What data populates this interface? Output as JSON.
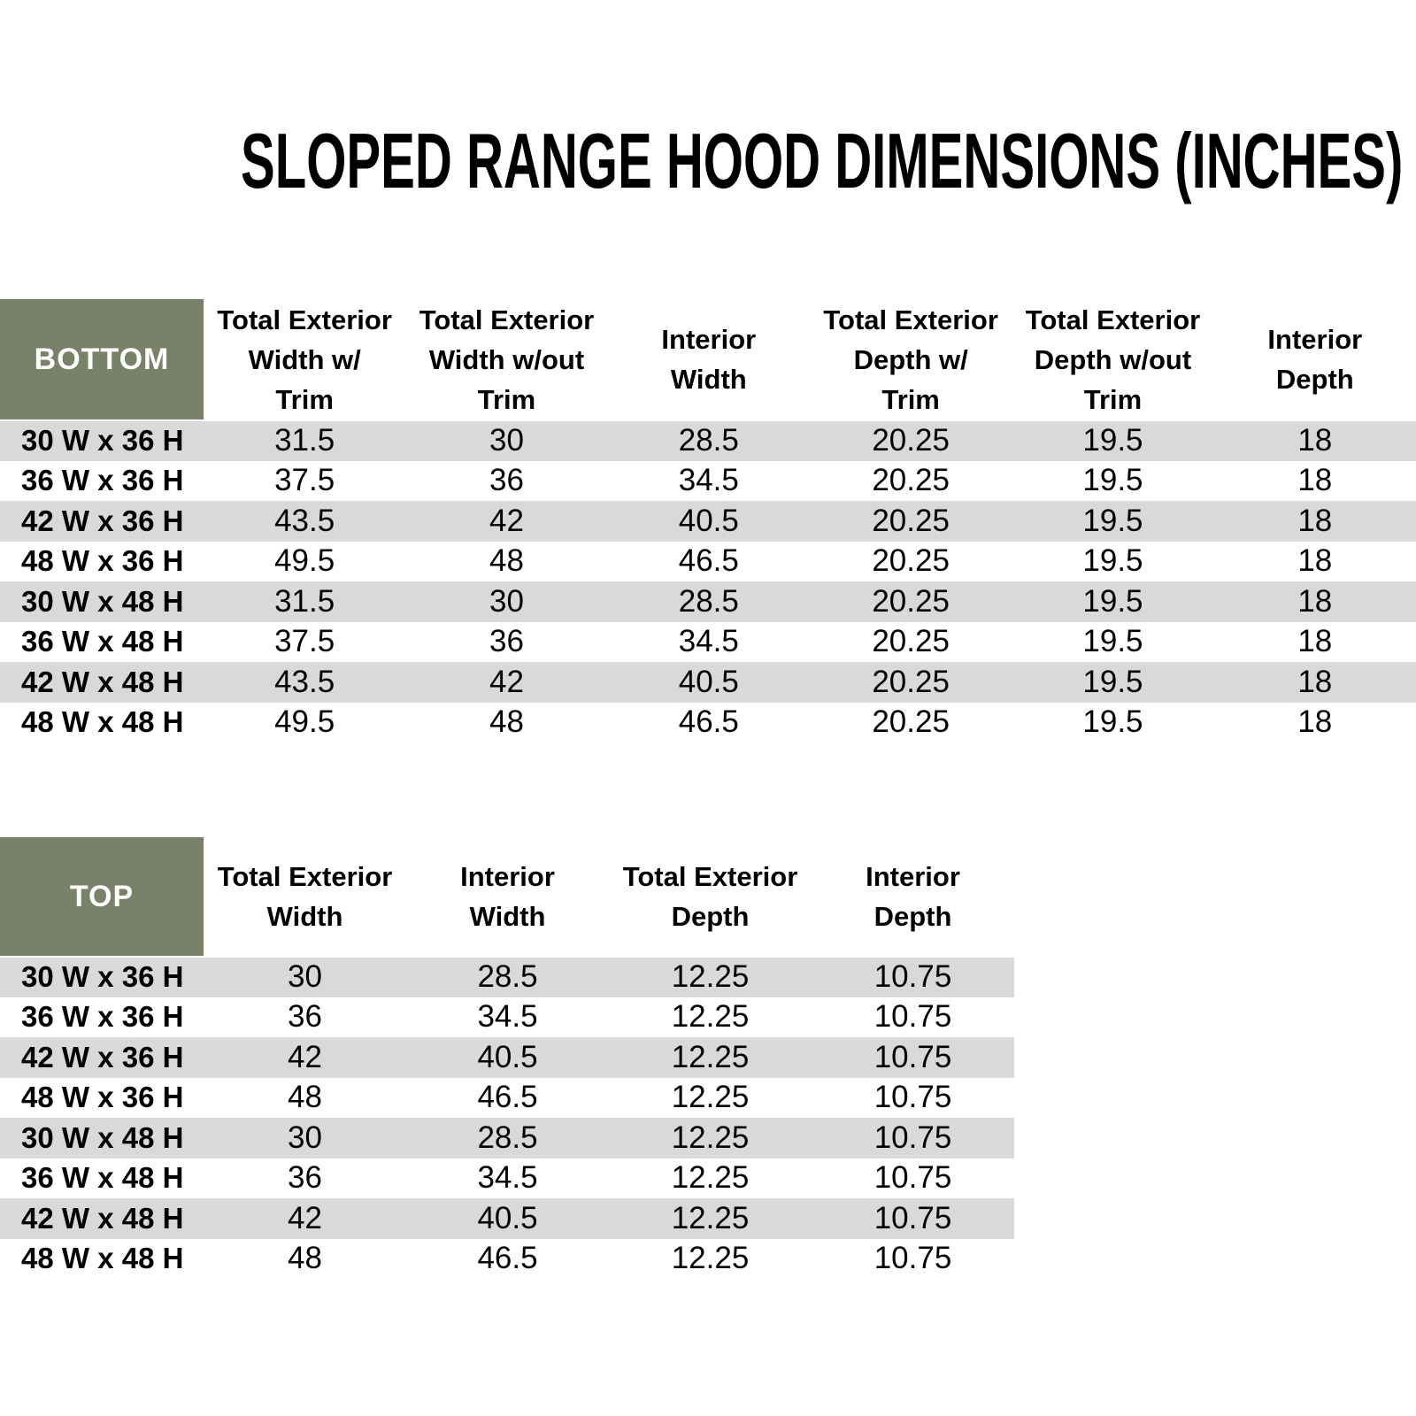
{
  "title": "SLOPED RANGE HOOD DIMENSIONS (INCHES)",
  "colors": {
    "header_fill": "#798269",
    "header_text": "#ffffff",
    "stripe_fill": "#d9d9d9",
    "body_text": "#000000",
    "background": "#ffffff"
  },
  "bottom_table": {
    "corner_label": "BOTTOM",
    "columns": [
      "Total Exterior\nWidth w/\nTrim",
      "Total Exterior\nWidth w/out\nTrim",
      "Interior\nWidth",
      "Total Exterior\nDepth w/\nTrim",
      "Total Exterior\nDepth w/out\nTrim",
      "Interior\nDepth"
    ],
    "rows": [
      {
        "label": "30 W x 36 H",
        "values": [
          "31.5",
          "30",
          "28.5",
          "20.25",
          "19.5",
          "18"
        ]
      },
      {
        "label": "36 W x 36 H",
        "values": [
          "37.5",
          "36",
          "34.5",
          "20.25",
          "19.5",
          "18"
        ]
      },
      {
        "label": "42 W x 36 H",
        "values": [
          "43.5",
          "42",
          "40.5",
          "20.25",
          "19.5",
          "18"
        ]
      },
      {
        "label": "48 W x 36 H",
        "values": [
          "49.5",
          "48",
          "46.5",
          "20.25",
          "19.5",
          "18"
        ]
      },
      {
        "label": "30 W x 48 H",
        "values": [
          "31.5",
          "30",
          "28.5",
          "20.25",
          "19.5",
          "18"
        ]
      },
      {
        "label": "36 W x 48 H",
        "values": [
          "37.5",
          "36",
          "34.5",
          "20.25",
          "19.5",
          "18"
        ]
      },
      {
        "label": "42 W x 48 H",
        "values": [
          "43.5",
          "42",
          "40.5",
          "20.25",
          "19.5",
          "18"
        ]
      },
      {
        "label": "48 W x 48 H",
        "values": [
          "49.5",
          "48",
          "46.5",
          "20.25",
          "19.5",
          "18"
        ]
      }
    ]
  },
  "top_table": {
    "corner_label": "TOP",
    "columns": [
      "Total Exterior\nWidth",
      "Interior\nWidth",
      "Total Exterior\nDepth",
      "Interior\nDepth"
    ],
    "rows": [
      {
        "label": "30 W x 36 H",
        "values": [
          "30",
          "28.5",
          "12.25",
          "10.75"
        ]
      },
      {
        "label": "36 W x 36 H",
        "values": [
          "36",
          "34.5",
          "12.25",
          "10.75"
        ]
      },
      {
        "label": "42 W x 36 H",
        "values": [
          "42",
          "40.5",
          "12.25",
          "10.75"
        ]
      },
      {
        "label": "48 W x 36 H",
        "values": [
          "48",
          "46.5",
          "12.25",
          "10.75"
        ]
      },
      {
        "label": "30 W x 48 H",
        "values": [
          "30",
          "28.5",
          "12.25",
          "10.75"
        ]
      },
      {
        "label": "36 W x 48 H",
        "values": [
          "36",
          "34.5",
          "12.25",
          "10.75"
        ]
      },
      {
        "label": "42 W x 48 H",
        "values": [
          "42",
          "40.5",
          "12.25",
          "10.75"
        ]
      },
      {
        "label": "48 W x 48 H",
        "values": [
          "48",
          "46.5",
          "12.25",
          "10.75"
        ]
      }
    ]
  }
}
